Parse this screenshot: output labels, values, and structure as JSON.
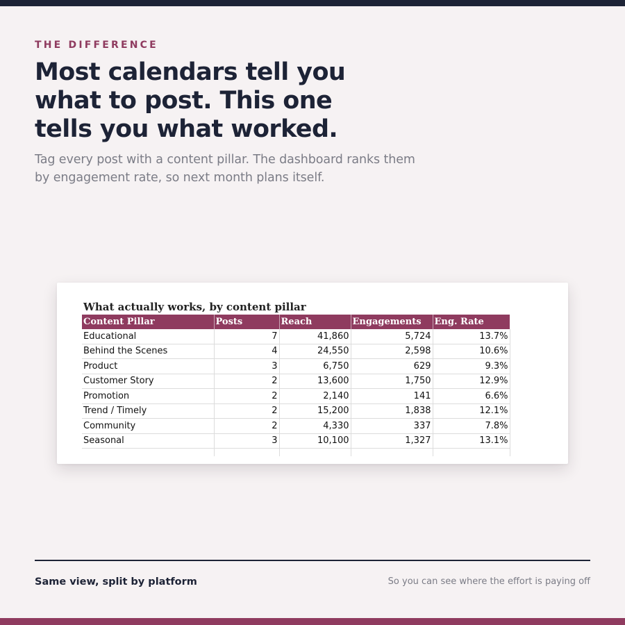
{
  "eyebrow": "THE DIFFERENCE",
  "headline": {
    "line1": "Most calendars tell you",
    "line2": "what to post. This one",
    "line3": "tells you what worked."
  },
  "subhead": {
    "line1": "Tag every post with a content pillar. The dashboard ranks them",
    "line2": "by engagement rate, so next month plans itself."
  },
  "sheet": {
    "title": "What actually works, by content pillar",
    "headers": [
      "Content Pillar",
      "Posts",
      "Reach",
      "Engagements",
      "Eng. Rate"
    ],
    "rows": [
      [
        "Educational",
        "7",
        "41,860",
        "5,724",
        "13.7%"
      ],
      [
        "Behind the Scenes",
        "4",
        "24,550",
        "2,598",
        "10.6%"
      ],
      [
        "Product",
        "3",
        "6,750",
        "629",
        "9.3%"
      ],
      [
        "Customer Story",
        "2",
        "13,600",
        "1,750",
        "12.9%"
      ],
      [
        "Promotion",
        "2",
        "2,140",
        "141",
        "6.6%"
      ],
      [
        "Trend / Timely",
        "2",
        "15,200",
        "1,838",
        "12.1%"
      ],
      [
        "Community",
        "2",
        "4,330",
        "337",
        "7.8%"
      ],
      [
        "Seasonal",
        "3",
        "10,100",
        "1,327",
        "13.1%"
      ]
    ]
  },
  "footer": {
    "left": "Same view, split by platform",
    "right": "So you can see where the effort is paying off"
  },
  "colors": {
    "navy": "#1d2336",
    "accent": "#8f3b5f",
    "background": "#f6f2f3",
    "muted_text": "#7b7c86"
  }
}
